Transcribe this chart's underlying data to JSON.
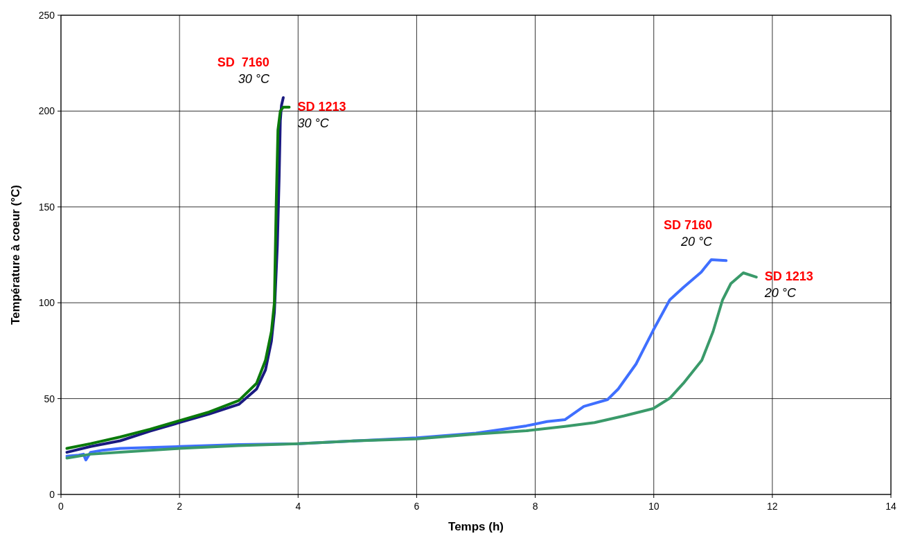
{
  "chart_data": {
    "type": "line",
    "xlabel": "Temps (h)",
    "ylabel": "Température à coeur (°C)",
    "xlim": [
      0,
      14
    ],
    "xticks": [
      0,
      2,
      4,
      6,
      8,
      10,
      12,
      14
    ],
    "ylim": [
      0,
      250
    ],
    "yticks": [
      0,
      50,
      100,
      150,
      200,
      250
    ],
    "grid": true,
    "marker": "none",
    "line_style": "solid",
    "series": [
      {
        "name": "SD  7160\n30 °C",
        "color": "#1a1a80",
        "x": [
          0.1,
          0.5,
          1,
          1.5,
          2,
          2.5,
          3,
          3.3,
          3.45,
          3.55,
          3.6,
          3.65,
          3.68,
          3.7,
          3.72,
          3.75
        ],
        "values": [
          22,
          25,
          28,
          33,
          37.5,
          42,
          47,
          55,
          65,
          80,
          95,
          130,
          165,
          195,
          203,
          207
        ]
      },
      {
        "name": "SD 1213\n30 °C",
        "color": "#0a7a0a",
        "x": [
          0.1,
          0.5,
          1,
          1.5,
          2,
          2.5,
          3,
          3.3,
          3.45,
          3.55,
          3.6,
          3.63,
          3.66,
          3.7,
          3.75,
          3.85
        ],
        "values": [
          24,
          26.5,
          30,
          34,
          38.5,
          43,
          49,
          58,
          70,
          85,
          100,
          150,
          190,
          200,
          202,
          202
        ]
      },
      {
        "name": "SD 7160\n20 °C",
        "color": "#3f6fff",
        "x": [
          0.1,
          0.3,
          0.38,
          0.42,
          0.5,
          0.7,
          1,
          2,
          3,
          4,
          5,
          6,
          7,
          7.85,
          8.2,
          8.5,
          8.82,
          9.22,
          9.4,
          9.7,
          9.99,
          10.27,
          10.5,
          10.8,
          10.97,
          11.22
        ],
        "values": [
          20,
          20.5,
          21,
          18,
          22,
          23,
          24,
          25,
          26,
          26.5,
          28,
          29.5,
          32,
          35.8,
          38,
          39,
          45.9,
          49.5,
          55,
          68,
          85.6,
          101.5,
          108,
          116,
          122.5,
          122
        ]
      },
      {
        "name": "SD 1213\n20 °C",
        "color": "#3a9a6a",
        "x": [
          0.1,
          0.5,
          1,
          2,
          3,
          4,
          5,
          6,
          7,
          7.85,
          8.5,
          9,
          9.5,
          9.99,
          10.27,
          10.5,
          10.81,
          11,
          11.16,
          11.3,
          11.51,
          11.73
        ],
        "values": [
          19,
          21,
          22,
          24,
          25.5,
          26.5,
          28,
          29,
          31.5,
          33.2,
          35.5,
          37.5,
          41,
          44.8,
          50.2,
          58,
          70,
          85,
          101.5,
          110,
          115.6,
          113.4
        ]
      }
    ]
  }
}
